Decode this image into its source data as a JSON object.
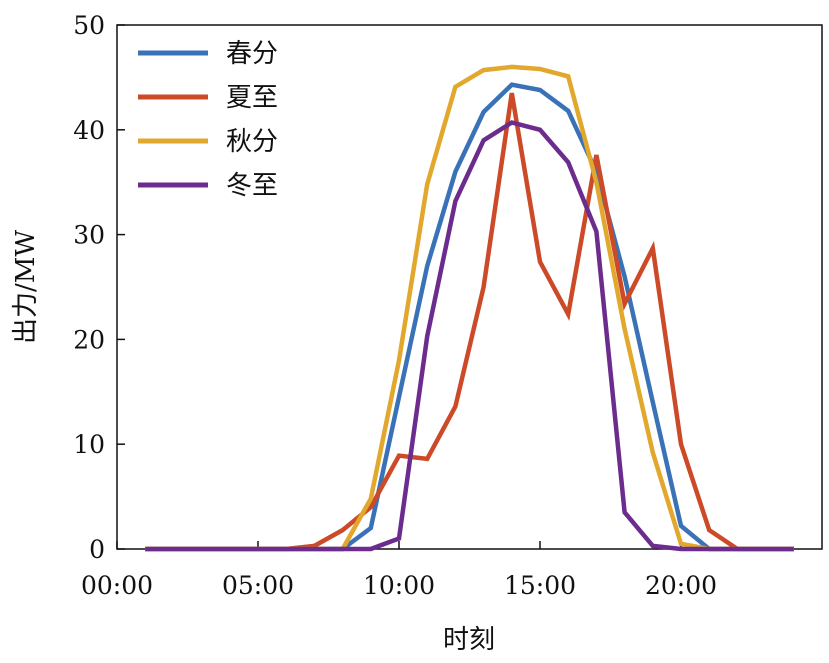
{
  "chart_data": {
    "type": "line",
    "title": "",
    "xlabel": "时刻",
    "ylabel": "出力/MW",
    "xlim": [
      0,
      25
    ],
    "ylim": [
      0,
      50
    ],
    "x_ticks": [
      {
        "value": 0,
        "label": "00:00"
      },
      {
        "value": 5,
        "label": "05:00"
      },
      {
        "value": 10,
        "label": "10:00"
      },
      {
        "value": 15,
        "label": "15:00"
      },
      {
        "value": 20,
        "label": "20:00"
      }
    ],
    "y_ticks": [
      {
        "value": 0,
        "label": "0"
      },
      {
        "value": 10,
        "label": "10"
      },
      {
        "value": 20,
        "label": "20"
      },
      {
        "value": 30,
        "label": "30"
      },
      {
        "value": 40,
        "label": "40"
      },
      {
        "value": 50,
        "label": "50"
      }
    ],
    "legend_position": "top-left",
    "grid": false,
    "x": [
      1,
      2,
      3,
      4,
      5,
      6,
      7,
      8,
      9,
      10,
      11,
      12,
      13,
      14,
      15,
      16,
      17,
      18,
      19,
      20,
      21,
      22,
      23,
      24
    ],
    "series": [
      {
        "name": "春分",
        "color": "#3a72b8",
        "values": [
          0,
          0,
          0,
          0,
          0,
          0,
          0,
          0,
          2,
          14.5,
          27,
          36,
          41.7,
          44.3,
          43.8,
          41.8,
          36,
          26,
          14,
          2.2,
          0,
          0,
          0,
          0
        ]
      },
      {
        "name": "夏至",
        "color": "#cc4a27",
        "values": [
          0,
          0,
          0,
          0,
          0,
          0,
          0.3,
          1.8,
          4,
          8.9,
          8.6,
          13.6,
          25,
          43.5,
          27.4,
          22.4,
          37.6,
          23.4,
          28.7,
          10,
          1.8,
          0,
          0,
          0
        ]
      },
      {
        "name": "秋分",
        "color": "#e2a72d",
        "values": [
          0,
          0,
          0,
          0,
          0,
          0,
          0,
          0,
          4.8,
          18,
          34.8,
          44.1,
          45.7,
          46,
          45.8,
          45.1,
          35,
          21,
          9.2,
          0.5,
          0,
          0,
          0,
          0
        ]
      },
      {
        "name": "冬至",
        "color": "#6b2c8e",
        "values": [
          0,
          0,
          0,
          0,
          0,
          0,
          0,
          0,
          0,
          1,
          20.3,
          33.2,
          39,
          40.7,
          40,
          36.9,
          30.3,
          3.5,
          0.3,
          0,
          0,
          0,
          0,
          0
        ]
      }
    ]
  }
}
